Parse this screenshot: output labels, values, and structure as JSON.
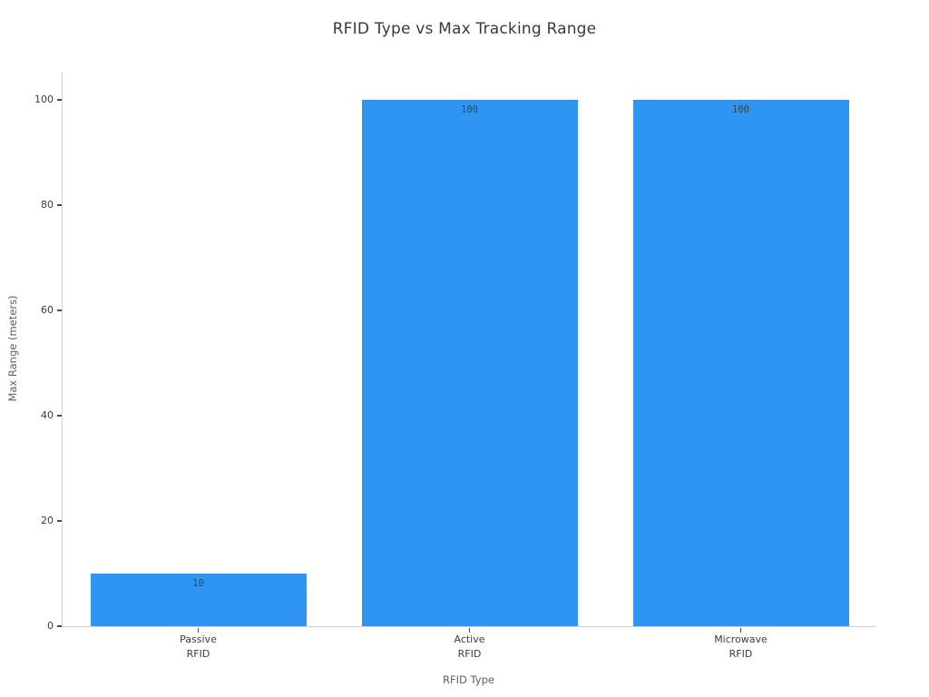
{
  "chart_data": {
    "type": "bar",
    "title": "RFID Type vs Max Tracking Range",
    "xlabel": "RFID Type",
    "ylabel": "Max Range (meters)",
    "categories": [
      [
        "Passive",
        "RFID"
      ],
      [
        "Active",
        "RFID"
      ],
      [
        "Microwave",
        "RFID"
      ]
    ],
    "values": [
      10,
      100,
      100
    ],
    "bar_labels": [
      "10",
      "100",
      "100"
    ],
    "yticks": [
      0,
      20,
      40,
      60,
      80,
      100
    ],
    "ylim": [
      0,
      105
    ],
    "grid": false,
    "legend": null,
    "bar_color": "#2e95f3"
  },
  "colors": {
    "bar": "#2e95f3",
    "spine": "#d2d2d2",
    "tick_mark": "#4a4a4a",
    "tick_label": "#3d3d3d",
    "axis_label": "#616161",
    "title": "#3a3a3a",
    "background": "#ffffff"
  }
}
